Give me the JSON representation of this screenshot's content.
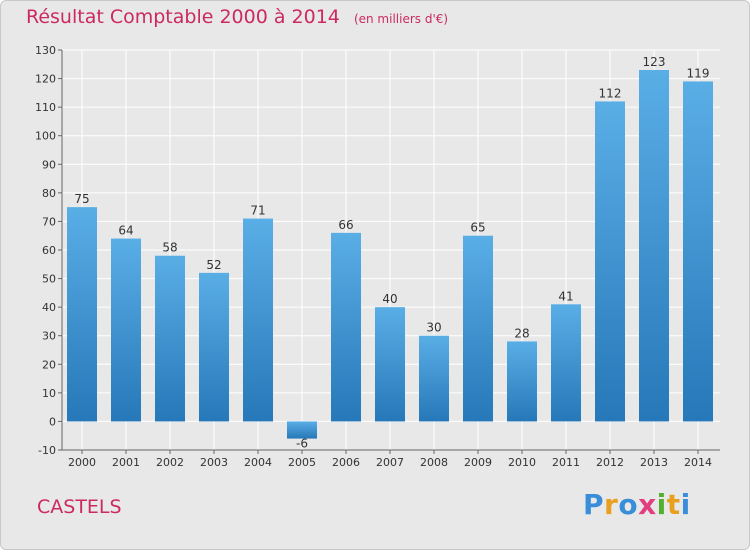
{
  "title": "Résultat Comptable 2000 à 2014",
  "subtitle": "(en milliers d'€)",
  "commune": "CASTELS",
  "logo": {
    "text": "Proxiti",
    "letters": [
      {
        "ch": "P",
        "color": "#3a8dd8"
      },
      {
        "ch": "r",
        "color": "#e8a020"
      },
      {
        "ch": "o",
        "color": "#3a8dd8"
      },
      {
        "ch": "x",
        "color": "#e04080"
      },
      {
        "ch": "i",
        "color": "#50b030"
      },
      {
        "ch": "t",
        "color": "#e8a020"
      },
      {
        "ch": "i",
        "color": "#3a8dd8"
      }
    ]
  },
  "colors": {
    "title": "#cc2a5e",
    "bar_light": "#5aaee6",
    "bar_dark": "#2678b8",
    "grid": "#ffffff",
    "background": "#e8e8e8"
  },
  "chart_data": {
    "type": "bar",
    "categories": [
      "2000",
      "2001",
      "2002",
      "2003",
      "2004",
      "2005",
      "2006",
      "2007",
      "2008",
      "2009",
      "2010",
      "2011",
      "2012",
      "2013",
      "2014"
    ],
    "values": [
      75,
      64,
      58,
      52,
      71,
      -6,
      66,
      40,
      30,
      65,
      28,
      41,
      112,
      123,
      119
    ],
    "ylim": [
      -10,
      130
    ],
    "yticks": [
      -10,
      0,
      10,
      20,
      30,
      40,
      50,
      60,
      70,
      80,
      90,
      100,
      110,
      120,
      130
    ],
    "grid": true,
    "data_labels": true
  }
}
